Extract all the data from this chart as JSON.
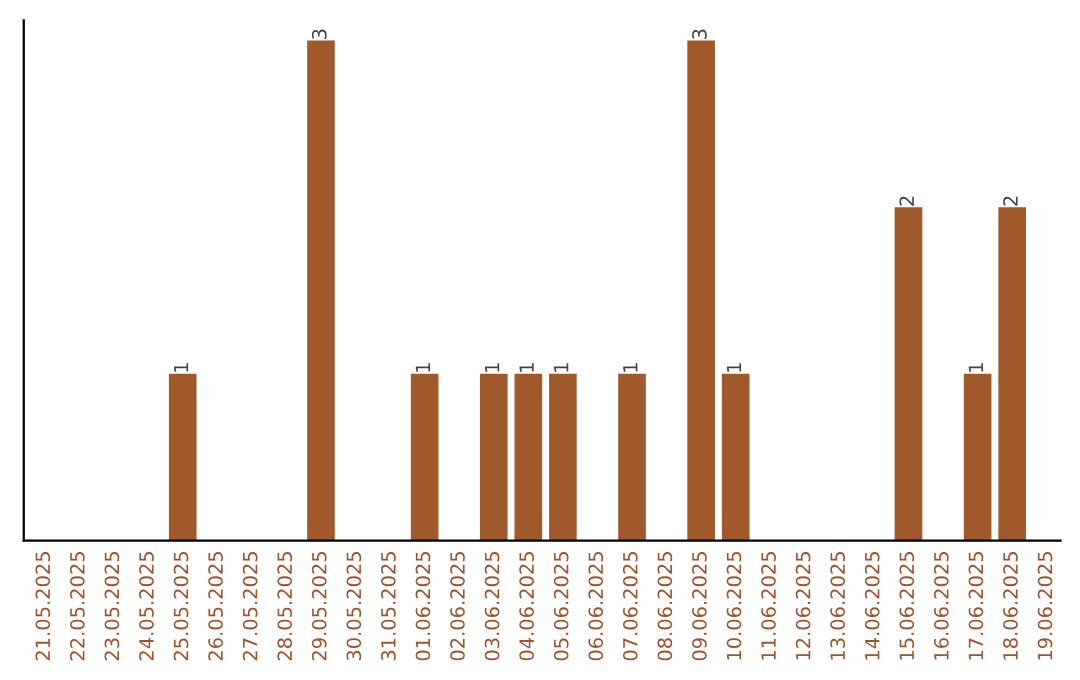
{
  "chart_data": {
    "type": "bar",
    "categories": [
      "21.05.2025",
      "22.05.2025",
      "23.05.2025",
      "24.05.2025",
      "25.05.2025",
      "26.05.2025",
      "27.05.2025",
      "28.05.2025",
      "29.05.2025",
      "30.05.2025",
      "31.05.2025",
      "01.06.2025",
      "02.06.2025",
      "03.06.2025",
      "04.06.2025",
      "05.06.2025",
      "06.06.2025",
      "07.06.2025",
      "08.06.2025",
      "09.06.2025",
      "10.06.2025",
      "11.06.2025",
      "12.06.2025",
      "13.06.2025",
      "14.06.2025",
      "15.06.2025",
      "16.06.2025",
      "17.06.2025",
      "18.06.2025",
      "19.06.2025"
    ],
    "values": [
      0,
      0,
      0,
      0,
      1,
      0,
      0,
      0,
      3,
      0,
      0,
      1,
      0,
      1,
      1,
      1,
      0,
      1,
      0,
      3,
      1,
      0,
      0,
      0,
      0,
      2,
      0,
      1,
      2,
      0
    ],
    "value_labels": [
      null,
      null,
      null,
      null,
      "1",
      null,
      null,
      null,
      "3",
      null,
      null,
      "1",
      null,
      "1",
      "1",
      "1",
      null,
      "1",
      null,
      "3",
      "1",
      null,
      null,
      null,
      null,
      "2",
      null,
      "1",
      "2",
      null
    ],
    "color": "#a0592a",
    "tick_labels": "x",
    "grid": false,
    "legend": false
  }
}
